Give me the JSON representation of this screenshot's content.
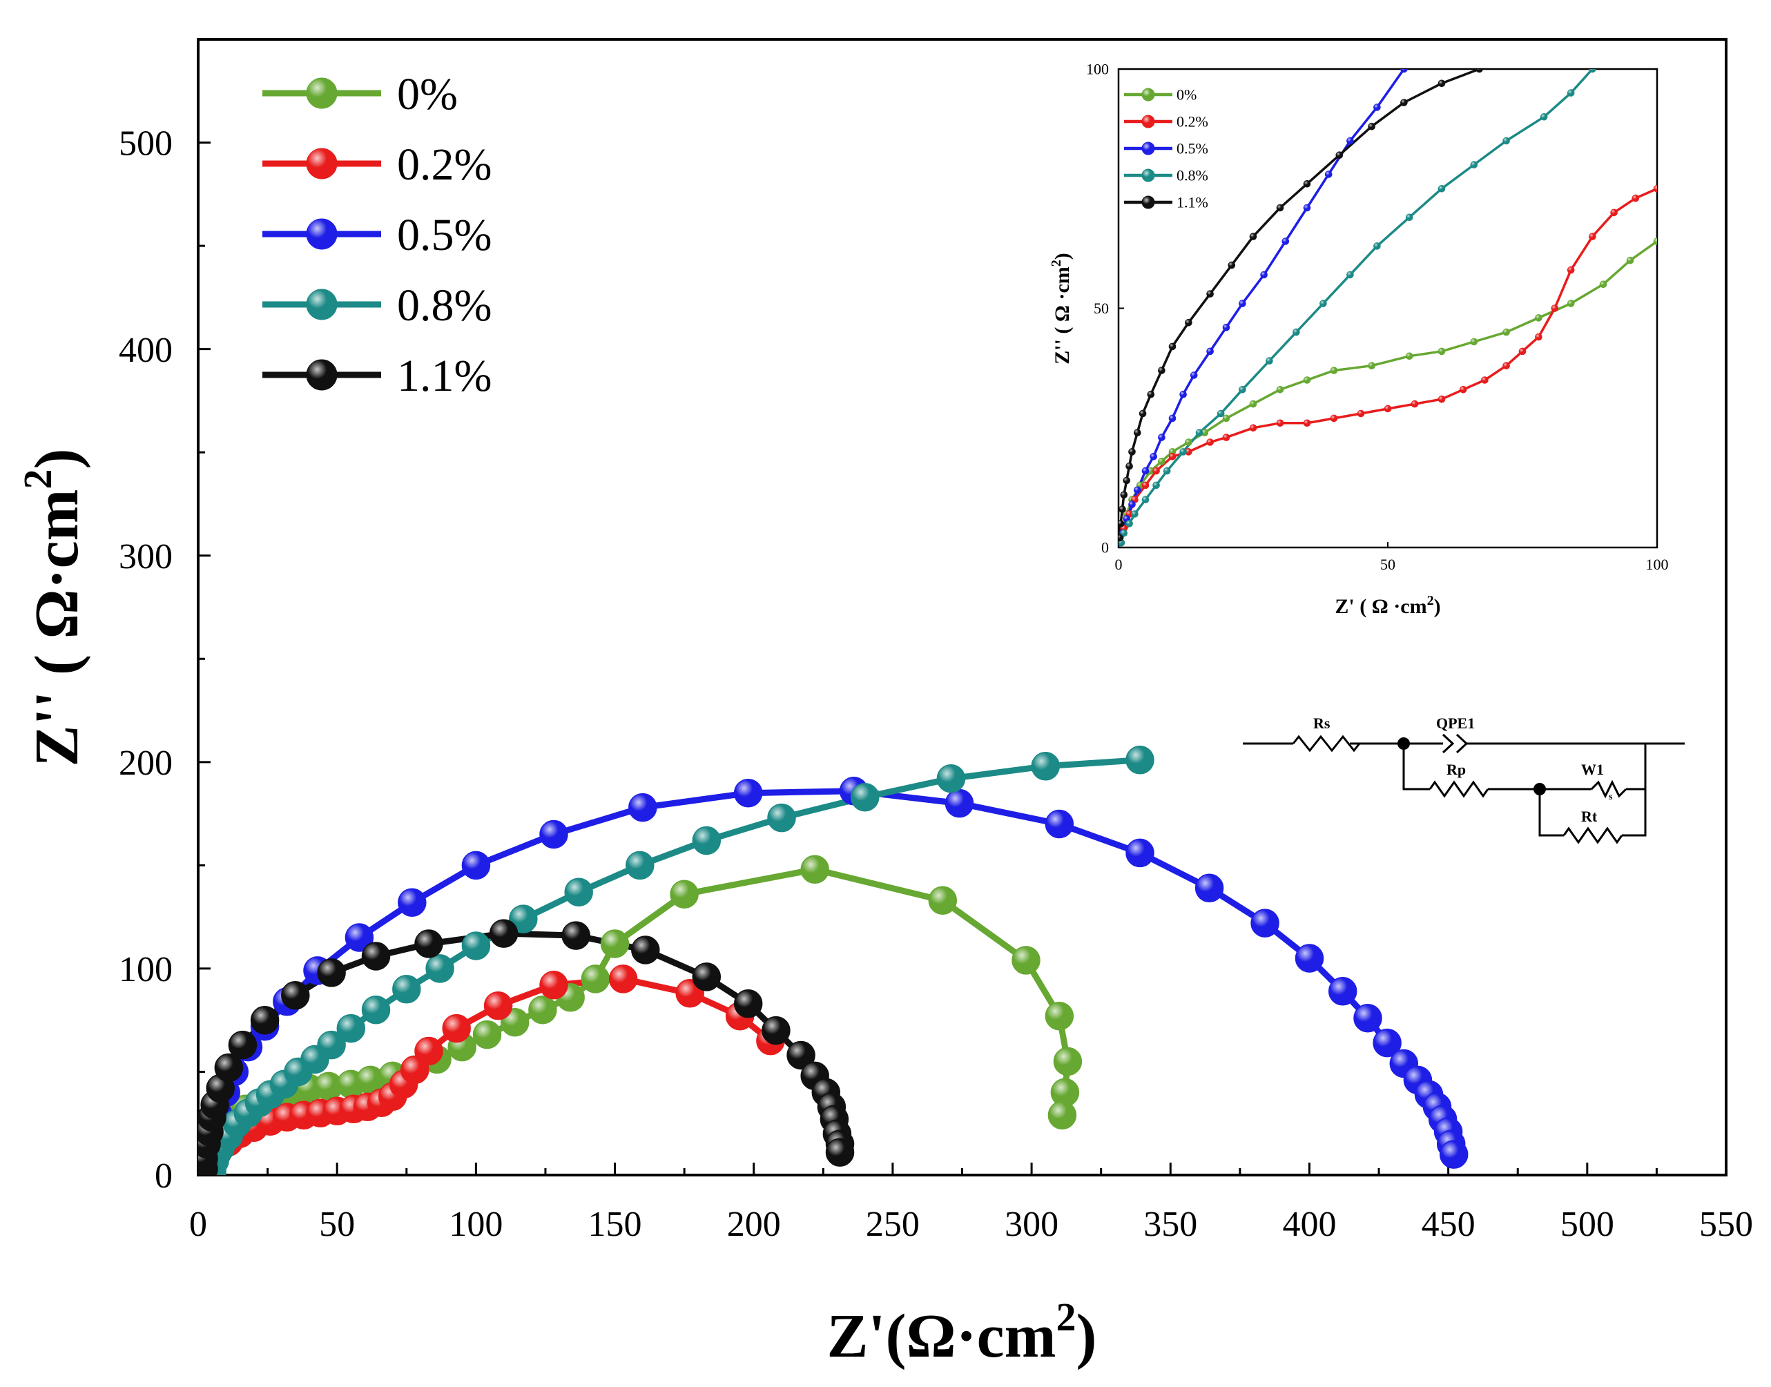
{
  "colors": {
    "0%": "#66a832",
    "0.2%": "#e81c1c",
    "0.5%": "#1e1ee6",
    "0.8%": "#1c8a86",
    "1.1%": "#111111"
  },
  "chart_data": [
    {
      "id": "main",
      "type": "scatter",
      "xlabel_main": "Z'(Ω·cm",
      "ylabel_main": "Z'' ( Ω·cm",
      "label_sup": "2",
      "label_close": ")",
      "xlim": [
        0,
        550
      ],
      "ylim": [
        0,
        550
      ],
      "xticks": [
        0,
        50,
        100,
        150,
        200,
        250,
        300,
        350,
        400,
        450,
        500,
        550
      ],
      "yticks": [
        0,
        100,
        200,
        300,
        400,
        500
      ],
      "legend_position": "top-left",
      "legend": [
        "0%",
        "0.2%",
        "0.5%",
        "0.8%",
        "1.1%"
      ],
      "series": [
        {
          "name": "0%",
          "points": [
            [
              4,
              4
            ],
            [
              6,
              15
            ],
            [
              9,
              22
            ],
            [
              13,
              28
            ],
            [
              17,
              32
            ],
            [
              22,
              35
            ],
            [
              27,
              38
            ],
            [
              33,
              40
            ],
            [
              40,
              42
            ],
            [
              47,
              43
            ],
            [
              55,
              44
            ],
            [
              62,
              46
            ],
            [
              70,
              48
            ],
            [
              78,
              51
            ],
            [
              86,
              56
            ],
            [
              95,
              62
            ],
            [
              104,
              68
            ],
            [
              114,
              74
            ],
            [
              124,
              80
            ],
            [
              134,
              86
            ],
            [
              143,
              95
            ],
            [
              150,
              112
            ],
            [
              175,
              136
            ],
            [
              222,
              148
            ],
            [
              268,
              133
            ],
            [
              298,
              104
            ],
            [
              310,
              77
            ],
            [
              313,
              55
            ],
            [
              312,
              40
            ],
            [
              311,
              29
            ]
          ]
        },
        {
          "name": "0.2%",
          "points": [
            [
              4,
              5
            ],
            [
              7,
              11
            ],
            [
              11,
              16
            ],
            [
              15,
              20
            ],
            [
              20,
              23
            ],
            [
              26,
              26
            ],
            [
              32,
              28
            ],
            [
              38,
              29
            ],
            [
              44,
              30
            ],
            [
              50,
              31
            ],
            [
              56,
              32
            ],
            [
              61,
              33
            ],
            [
              66,
              35
            ],
            [
              70,
              38
            ],
            [
              74,
              44
            ],
            [
              78,
              51
            ],
            [
              83,
              60
            ],
            [
              93,
              71
            ],
            [
              108,
              82
            ],
            [
              128,
              92
            ],
            [
              153,
              95
            ],
            [
              177,
              88
            ],
            [
              195,
              77
            ],
            [
              206,
              65
            ]
          ]
        },
        {
          "name": "0.5%",
          "points": [
            [
              2,
              3
            ],
            [
              3,
              10
            ],
            [
              5,
              20
            ],
            [
              7,
              30
            ],
            [
              10,
              40
            ],
            [
              13,
              50
            ],
            [
              18,
              62
            ],
            [
              24,
              72
            ],
            [
              32,
              84
            ],
            [
              43,
              99
            ],
            [
              58,
              115
            ],
            [
              77,
              132
            ],
            [
              100,
              150
            ],
            [
              128,
              165
            ],
            [
              160,
              178
            ],
            [
              198,
              185
            ],
            [
              236,
              186
            ],
            [
              274,
              180
            ],
            [
              310,
              170
            ],
            [
              339,
              156
            ],
            [
              364,
              139
            ],
            [
              384,
              122
            ],
            [
              400,
              105
            ],
            [
              412,
              89
            ],
            [
              421,
              76
            ],
            [
              428,
              64
            ],
            [
              434,
              54
            ],
            [
              439,
              46
            ],
            [
              443,
              39
            ],
            [
              446,
              33
            ],
            [
              448,
              27
            ],
            [
              450,
              21
            ],
            [
              451,
              15
            ],
            [
              452,
              10
            ]
          ]
        },
        {
          "name": "0.8%",
          "points": [
            [
              5,
              2
            ],
            [
              6,
              7
            ],
            [
              8,
              13
            ],
            [
              11,
              19
            ],
            [
              14,
              25
            ],
            [
              18,
              30
            ],
            [
              22,
              35
            ],
            [
              26,
              39
            ],
            [
              31,
              44
            ],
            [
              36,
              50
            ],
            [
              42,
              56
            ],
            [
              48,
              63
            ],
            [
              55,
              71
            ],
            [
              64,
              80
            ],
            [
              75,
              90
            ],
            [
              87,
              100
            ],
            [
              100,
              111
            ],
            [
              117,
              124
            ],
            [
              137,
              137
            ],
            [
              159,
              150
            ],
            [
              183,
              162
            ],
            [
              210,
              173
            ],
            [
              240,
              183
            ],
            [
              271,
              192
            ],
            [
              305,
              198
            ],
            [
              339,
              201
            ]
          ]
        },
        {
          "name": "1.1%",
          "points": [
            [
              2,
              3
            ],
            [
              2,
              8
            ],
            [
              3,
              15
            ],
            [
              4,
              21
            ],
            [
              5,
              28
            ],
            [
              6,
              34
            ],
            [
              8,
              42
            ],
            [
              11,
              52
            ],
            [
              16,
              63
            ],
            [
              24,
              75
            ],
            [
              35,
              87
            ],
            [
              48,
              98
            ],
            [
              64,
              106
            ],
            [
              83,
              112
            ],
            [
              110,
              117
            ],
            [
              136,
              116
            ],
            [
              161,
              109
            ],
            [
              183,
              96
            ],
            [
              198,
              83
            ],
            [
              208,
              70
            ],
            [
              217,
              58
            ],
            [
              222,
              48
            ],
            [
              226,
              40
            ],
            [
              228,
              33
            ],
            [
              229,
              27
            ],
            [
              230,
              20
            ],
            [
              231,
              15
            ],
            [
              231,
              11
            ]
          ]
        }
      ]
    },
    {
      "id": "inset",
      "type": "line",
      "xlabel_main": "Z' ( Ω ·cm",
      "ylabel_main": "Z'' ( Ω ·cm",
      "label_sup": "2",
      "label_close": ")",
      "xlim": [
        0,
        100
      ],
      "ylim": [
        0,
        100
      ],
      "xticks": [
        0,
        50,
        100
      ],
      "yticks": [
        0,
        50,
        100
      ],
      "legend_position": "top-left",
      "legend": [
        "0%",
        "0.2%",
        "0.5%",
        "0.8%",
        "1.1%"
      ],
      "series": [
        {
          "name": "0%",
          "points": [
            [
              0.5,
              1
            ],
            [
              1,
              4
            ],
            [
              1.5,
              7
            ],
            [
              2.5,
              10
            ],
            [
              4,
              13
            ],
            [
              6,
              16
            ],
            [
              8,
              18
            ],
            [
              10,
              20
            ],
            [
              13,
              22
            ],
            [
              16,
              24
            ],
            [
              20,
              27
            ],
            [
              25,
              30
            ],
            [
              30,
              33
            ],
            [
              35,
              35
            ],
            [
              40,
              37
            ],
            [
              47,
              38
            ],
            [
              54,
              40
            ],
            [
              60,
              41
            ],
            [
              66,
              43
            ],
            [
              72,
              45
            ],
            [
              78,
              48
            ],
            [
              84,
              51
            ],
            [
              90,
              55
            ],
            [
              95,
              60
            ],
            [
              100,
              64
            ]
          ]
        },
        {
          "name": "0.2%",
          "points": [
            [
              0.5,
              1
            ],
            [
              1,
              4
            ],
            [
              2,
              7
            ],
            [
              3,
              10
            ],
            [
              5,
              13
            ],
            [
              7,
              16
            ],
            [
              10,
              19
            ],
            [
              13,
              20
            ],
            [
              17,
              22
            ],
            [
              20,
              23
            ],
            [
              25,
              25
            ],
            [
              30,
              26
            ],
            [
              35,
              26
            ],
            [
              40,
              27
            ],
            [
              45,
              28
            ],
            [
              50,
              29
            ],
            [
              55,
              30
            ],
            [
              60,
              31
            ],
            [
              64,
              33
            ],
            [
              68,
              35
            ],
            [
              72,
              38
            ],
            [
              75,
              41
            ],
            [
              78,
              44
            ],
            [
              81,
              50
            ],
            [
              84,
              58
            ],
            [
              88,
              65
            ],
            [
              92,
              70
            ],
            [
              96,
              73
            ],
            [
              100,
              75
            ]
          ]
        },
        {
          "name": "0.5%",
          "points": [
            [
              0.3,
              1
            ],
            [
              0.8,
              3
            ],
            [
              1.5,
              6
            ],
            [
              2.5,
              9
            ],
            [
              3.5,
              12
            ],
            [
              5,
              16
            ],
            [
              6.5,
              19
            ],
            [
              8,
              23
            ],
            [
              10,
              27
            ],
            [
              12,
              32
            ],
            [
              14,
              36
            ],
            [
              17,
              41
            ],
            [
              20,
              46
            ],
            [
              23,
              51
            ],
            [
              27,
              57
            ],
            [
              31,
              64
            ],
            [
              35,
              71
            ],
            [
              39,
              78
            ],
            [
              43,
              85
            ],
            [
              48,
              92
            ],
            [
              53,
              100
            ]
          ]
        },
        {
          "name": "0.8%",
          "points": [
            [
              0.5,
              1
            ],
            [
              1,
              3
            ],
            [
              2,
              5
            ],
            [
              3,
              7
            ],
            [
              5,
              10
            ],
            [
              7,
              13
            ],
            [
              9,
              16
            ],
            [
              12,
              20
            ],
            [
              15,
              24
            ],
            [
              19,
              28
            ],
            [
              23,
              33
            ],
            [
              28,
              39
            ],
            [
              33,
              45
            ],
            [
              38,
              51
            ],
            [
              43,
              57
            ],
            [
              48,
              63
            ],
            [
              54,
              69
            ],
            [
              60,
              75
            ],
            [
              66,
              80
            ],
            [
              72,
              85
            ],
            [
              79,
              90
            ],
            [
              84,
              95
            ],
            [
              88,
              100
            ]
          ]
        },
        {
          "name": "1.1%",
          "points": [
            [
              0.2,
              2
            ],
            [
              0.4,
              5
            ],
            [
              0.7,
              8
            ],
            [
              1,
              11
            ],
            [
              1.5,
              14
            ],
            [
              2,
              17
            ],
            [
              2.5,
              20
            ],
            [
              3.5,
              24
            ],
            [
              4.5,
              28
            ],
            [
              6,
              32
            ],
            [
              8,
              37
            ],
            [
              10,
              42
            ],
            [
              13,
              47
            ],
            [
              17,
              53
            ],
            [
              21,
              59
            ],
            [
              25,
              65
            ],
            [
              30,
              71
            ],
            [
              35,
              76
            ],
            [
              41,
              82
            ],
            [
              47,
              88
            ],
            [
              53,
              93
            ],
            [
              60,
              97
            ],
            [
              67,
              100
            ]
          ]
        }
      ]
    }
  ],
  "circuit": {
    "labels": [
      "Rs",
      "QPE1",
      "Rp",
      "W1",
      "Rt"
    ],
    "subscript": "s"
  }
}
